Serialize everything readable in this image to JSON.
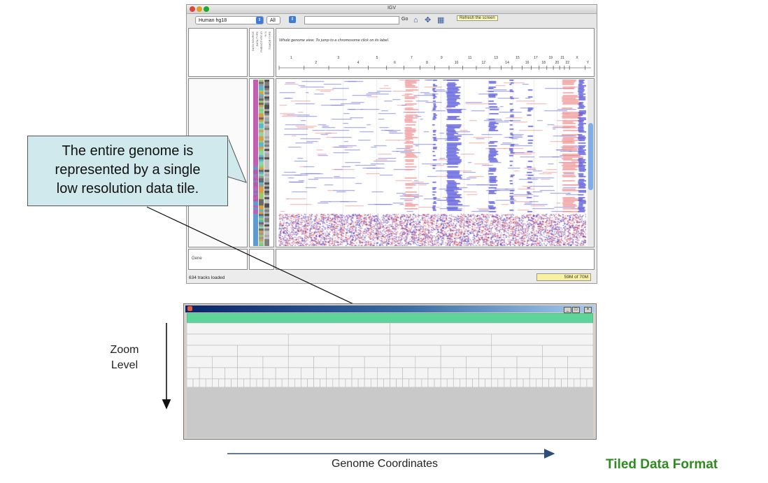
{
  "igv_window": {
    "title": "IGV",
    "genome_dropdown": "Human hg18",
    "chromosome_dropdown": "All",
    "go_label": "Go",
    "tooltip": "Refresh the screen",
    "ruler_text": "Whole genome view.  To jump to a chromosome click on its label.",
    "chromosomes": [
      "1",
      "2",
      "3",
      "4",
      "5",
      "6",
      "7",
      "8",
      "9",
      "10",
      "11",
      "12",
      "13",
      "14",
      "15",
      "16",
      "17",
      "18",
      "19",
      "20",
      "21",
      "22",
      "X",
      "Y"
    ],
    "attribute_headers": [
      "DATA SOURCE",
      "DATA TYPE",
      "PHENOTYPE ID",
      "% N",
      "TUMOR TYPE"
    ],
    "gene_track_label": "Gene",
    "status_text": "634 tracks loaded",
    "memory_text": "59M of 70M",
    "colors": {
      "gain": "#e8504a",
      "loss": "#2a2ad0",
      "scrollbar": "#7faee8"
    }
  },
  "callout": {
    "text_line1": "The entire genome is",
    "text_line2": "represented by a single",
    "text_line3": "low resolution data tile."
  },
  "tile_window": {
    "level_counts": [
      1,
      2,
      4,
      8,
      16,
      32,
      64
    ],
    "highlight_color": "#5ed39a"
  },
  "labels": {
    "zoom_line1": "Zoom",
    "zoom_line2": "Level",
    "genome_coordinates": "Genome Coordinates",
    "slide_title": "Tiled Data Format"
  }
}
